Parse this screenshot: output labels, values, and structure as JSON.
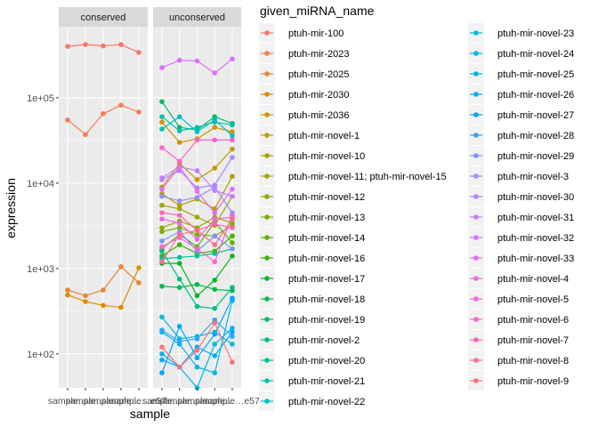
{
  "chart_data": {
    "type": "line",
    "x_axis_title": "sample",
    "y_axis_title": "expression",
    "y_scale": "log10",
    "y_ticks": [
      "1e+02",
      "1e+03",
      "1e+04",
      "1e+05"
    ],
    "y_tick_values": [
      100,
      1000,
      10000,
      100000
    ],
    "x_tick_labels": [
      "sample…",
      "sample…",
      "sample…",
      "sample…",
      "sample…e57"
    ],
    "legend_title": "given_miRNA_name",
    "legend_entries": [
      {
        "label": "ptuh-mir-100",
        "color": "#F8766D"
      },
      {
        "label": "ptuh-mir-2023",
        "color": "#F27D52"
      },
      {
        "label": "ptuh-mir-2025",
        "color": "#EA8331"
      },
      {
        "label": "ptuh-mir-2030",
        "color": "#DE8C00"
      },
      {
        "label": "ptuh-mir-2036",
        "color": "#D09400"
      },
      {
        "label": "ptuh-mir-novel-1",
        "color": "#C49A00"
      },
      {
        "label": "ptuh-mir-novel-10",
        "color": "#B3A000"
      },
      {
        "label": "ptuh-mir-novel-11; ptuh-mir-novel-15",
        "color": "#A3A500"
      },
      {
        "label": "ptuh-mir-novel-12",
        "color": "#8FAA00"
      },
      {
        "label": "ptuh-mir-novel-13",
        "color": "#7CAE00"
      },
      {
        "label": "ptuh-mir-novel-14",
        "color": "#5EB300"
      },
      {
        "label": "ptuh-mir-novel-16",
        "color": "#39B600"
      },
      {
        "label": "ptuh-mir-novel-17",
        "color": "#00B81F"
      },
      {
        "label": "ptuh-mir-novel-18",
        "color": "#00BB4E"
      },
      {
        "label": "ptuh-mir-novel-19",
        "color": "#00BC6B"
      },
      {
        "label": "ptuh-mir-novel-2",
        "color": "#00BE80"
      },
      {
        "label": "ptuh-mir-novel-20",
        "color": "#00C097"
      },
      {
        "label": "ptuh-mir-novel-21",
        "color": "#00BFAC"
      },
      {
        "label": "ptuh-mir-novel-22",
        "color": "#00BFC4"
      },
      {
        "label": "ptuh-mir-novel-23",
        "color": "#00BCD6"
      },
      {
        "label": "ptuh-mir-novel-24",
        "color": "#00B8E7"
      },
      {
        "label": "ptuh-mir-novel-25",
        "color": "#00B4F0"
      },
      {
        "label": "ptuh-mir-novel-26",
        "color": "#00ADFA"
      },
      {
        "label": "ptuh-mir-novel-27",
        "color": "#00A5FF"
      },
      {
        "label": "ptuh-mir-novel-28",
        "color": "#35A2FF"
      },
      {
        "label": "ptuh-mir-novel-29",
        "color": "#7997FF"
      },
      {
        "label": "ptuh-mir-novel-3",
        "color": "#9590FF"
      },
      {
        "label": "ptuh-mir-novel-30",
        "color": "#AC88FF"
      },
      {
        "label": "ptuh-mir-novel-31",
        "color": "#C77CFF"
      },
      {
        "label": "ptuh-mir-novel-32",
        "color": "#DC71FA"
      },
      {
        "label": "ptuh-mir-novel-33",
        "color": "#E76BF3"
      },
      {
        "label": "ptuh-mir-novel-4",
        "color": "#F365E6"
      },
      {
        "label": "ptuh-mir-novel-5",
        "color": "#FA62DB"
      },
      {
        "label": "ptuh-mir-novel-6",
        "color": "#FF61C9"
      },
      {
        "label": "ptuh-mir-novel-7",
        "color": "#FF65AE"
      },
      {
        "label": "ptuh-mir-novel-8",
        "color": "#FF6C91"
      },
      {
        "label": "ptuh-mir-novel-9",
        "color": "#FA7476"
      }
    ],
    "panels": [
      {
        "strip": "conserved",
        "series": [
          {
            "name": "ptuh-mir-100",
            "color": "#F8766D",
            "values": [
              400000,
              420000,
              405000,
              420000,
              340000
            ]
          },
          {
            "name": "ptuh-mir-2023",
            "color": "#F27D52",
            "values": [
              55000,
              37000,
              65000,
              82000,
              68000
            ]
          },
          {
            "name": "ptuh-mir-2025",
            "color": "#EA8331",
            "values": [
              560,
              480,
              560,
              1050,
              680
            ]
          },
          {
            "name": "ptuh-mir-2030",
            "color": "#DE8C00",
            "values": [
              490,
              410,
              370,
              350,
              1020
            ]
          }
        ]
      },
      {
        "strip": "unconserved",
        "series": [
          {
            "name": "ptuh-mir-2036",
            "color": "#D09400",
            "values": [
              52000,
              30000,
              33000,
              45000,
              40000
            ]
          },
          {
            "name": "ptuh-mir-novel-1",
            "color": "#C49A00",
            "values": [
              9000,
              17000,
              11000,
              15000,
              25000
            ]
          },
          {
            "name": "ptuh-mir-novel-10",
            "color": "#B3A000",
            "values": [
              7500,
              5500,
              6500,
              5000,
              12000
            ]
          },
          {
            "name": "ptuh-mir-novel-11; ptuh-mir-novel-15",
            "color": "#A3A500",
            "values": [
              5500,
              5000,
              4000,
              3200,
              7000
            ]
          },
          {
            "name": "ptuh-mir-novel-12",
            "color": "#8FAA00",
            "values": [
              3000,
              3600,
              3000,
              4000,
              3400
            ]
          },
          {
            "name": "ptuh-mir-novel-13",
            "color": "#7CAE00",
            "values": [
              2700,
              3000,
              2500,
              2400,
              3200
            ]
          },
          {
            "name": "ptuh-mir-novel-14",
            "color": "#5EB300",
            "values": [
              1700,
              2500,
              1800,
              3500,
              2000
            ]
          },
          {
            "name": "ptuh-mir-novel-16",
            "color": "#39B600",
            "values": [
              1400,
              1900,
              1500,
              1600,
              2400
            ]
          },
          {
            "name": "ptuh-mir-novel-17",
            "color": "#00B81F",
            "values": [
              1150,
              1150,
              480,
              730,
              1400
            ]
          },
          {
            "name": "ptuh-mir-novel-18",
            "color": "#00BB4E",
            "values": [
              620,
              600,
              650,
              570,
              550
            ]
          },
          {
            "name": "ptuh-mir-novel-19",
            "color": "#00BC6B",
            "values": [
              90000,
              45000,
              42000,
              60000,
              50000
            ]
          },
          {
            "name": "ptuh-mir-novel-2",
            "color": "#00BE80",
            "values": [
              1600,
              750,
              360,
              340,
              600
            ]
          },
          {
            "name": "ptuh-mir-novel-20",
            "color": "#00C097",
            "values": [
              1300,
              1350,
              1400,
              1500,
              1700
            ]
          },
          {
            "name": "ptuh-mir-novel-21",
            "color": "#00BFAC",
            "values": [
              60000,
              41000,
              45000,
              52000,
              48000
            ]
          },
          {
            "name": "ptuh-mir-novel-22",
            "color": "#00BFC4",
            "values": [
              43000,
              60000,
              40000,
              55000,
              36000
            ]
          },
          {
            "name": "ptuh-mir-novel-23",
            "color": "#00BCD6",
            "values": [
              270,
              150,
              160,
              180,
              130
            ]
          },
          {
            "name": "ptuh-mir-novel-24",
            "color": "#00B8E7",
            "values": [
              180,
              130,
              70,
              60,
              420
            ]
          },
          {
            "name": "ptuh-mir-novel-25",
            "color": "#00B4F0",
            "values": [
              100,
              70,
              40,
              130,
              200
            ]
          },
          {
            "name": "ptuh-mir-novel-26",
            "color": "#00ADFA",
            "values": [
              85,
              70,
              120,
              95,
              180
            ]
          },
          {
            "name": "ptuh-mir-novel-27",
            "color": "#00A5FF",
            "values": [
              60,
              210,
              90,
              170,
              450
            ]
          },
          {
            "name": "ptuh-mir-novel-28",
            "color": "#35A2FF",
            "values": [
              190,
              140,
              150,
              250,
              160
            ]
          },
          {
            "name": "ptuh-mir-novel-29",
            "color": "#7997FF",
            "values": [
              2100,
              2700,
              1600,
              2400,
              1700
            ]
          },
          {
            "name": "ptuh-mir-novel-3",
            "color": "#9590FF",
            "values": [
              7000,
              6200,
              6800,
              9000,
              4500
            ]
          },
          {
            "name": "ptuh-mir-novel-30",
            "color": "#AC88FF",
            "values": [
              11000,
              14000,
              8800,
              9500,
              20000
            ]
          },
          {
            "name": "ptuh-mir-novel-31",
            "color": "#C77CFF",
            "values": [
              11500,
              15500,
              14000,
              8200,
              7000
            ]
          },
          {
            "name": "ptuh-mir-novel-32",
            "color": "#DC71FA",
            "values": [
              225000,
              275000,
              270000,
              195000,
              285000
            ]
          },
          {
            "name": "ptuh-mir-novel-33",
            "color": "#E76BF3",
            "values": [
              8500,
              15500,
              8000,
              4500,
              8500
            ]
          },
          {
            "name": "ptuh-mir-novel-4",
            "color": "#F365E6",
            "values": [
              3800,
              3400,
              2200,
              3800,
              4000
            ]
          },
          {
            "name": "ptuh-mir-novel-5",
            "color": "#FA62DB",
            "values": [
              1800,
              2300,
              1700,
              1200,
              4200
            ]
          },
          {
            "name": "ptuh-mir-novel-6",
            "color": "#FF61C9",
            "values": [
              26000,
              18000,
              32000,
              32000,
              32000
            ]
          },
          {
            "name": "ptuh-mir-novel-7",
            "color": "#FF65AE",
            "values": [
              4500,
              4200,
              2800,
              3300,
              3000
            ]
          },
          {
            "name": "ptuh-mir-novel-8",
            "color": "#FF6C91",
            "values": [
              1200,
              2500,
              2800,
              1900,
              3800
            ]
          },
          {
            "name": "ptuh-mir-novel-9",
            "color": "#FA7476",
            "values": [
              120,
              70,
              110,
              230,
              80
            ]
          }
        ]
      }
    ]
  }
}
